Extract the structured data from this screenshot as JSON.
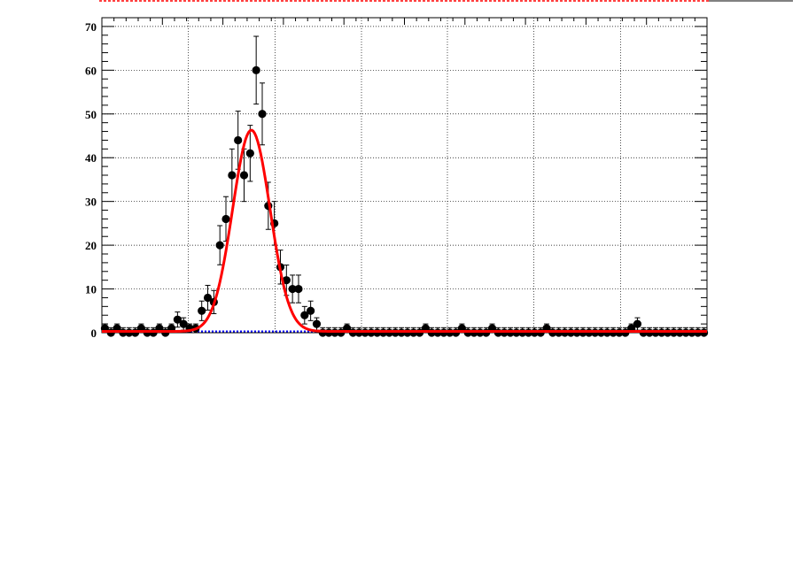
{
  "chart_data": {
    "type": "scatter",
    "title": "",
    "xlabel": "",
    "ylabel": "",
    "xlim": [
      0,
      100
    ],
    "ylim": [
      0,
      72
    ],
    "y_ticks": [
      0,
      10,
      20,
      30,
      40,
      50,
      60,
      70
    ],
    "grid": true,
    "x_grid": [
      14.3,
      28.6,
      42.9,
      57.1,
      71.4,
      85.7
    ],
    "series": [
      {
        "kind": "data-points-with-error-bars",
        "color": "#000000",
        "x": [
          0.5,
          1.5,
          2.5,
          3.5,
          4.5,
          5.5,
          6.5,
          7.5,
          8.5,
          9.5,
          10.5,
          11.5,
          12.5,
          13.5,
          14.5,
          15.5,
          16.5,
          17.5,
          18.5,
          19.5,
          20.5,
          21.5,
          22.5,
          23.5,
          24.5,
          25.5,
          26.5,
          27.5,
          28.5,
          29.5,
          30.5,
          31.5,
          32.5,
          33.5,
          34.5,
          35.5,
          36.5,
          37.5,
          38.5,
          39.5,
          40.5,
          41.5,
          42.5,
          43.5,
          44.5,
          45.5,
          46.5,
          47.5,
          48.5,
          49.5,
          50.5,
          51.5,
          52.5,
          53.5,
          54.5,
          55.5,
          56.5,
          57.5,
          58.5,
          59.5,
          60.5,
          61.5,
          62.5,
          63.5,
          64.5,
          65.5,
          66.5,
          67.5,
          68.5,
          69.5,
          70.5,
          71.5,
          72.5,
          73.5,
          74.5,
          75.5,
          76.5,
          77.5,
          78.5,
          79.5,
          80.5,
          81.5,
          82.5,
          83.5,
          84.5,
          85.5,
          86.5,
          87.5,
          88.5,
          89.5,
          90.5,
          91.5,
          92.5,
          93.5,
          94.5,
          95.5,
          96.5,
          97.5,
          98.5,
          99.5
        ],
        "y": [
          1,
          0,
          1,
          0,
          0,
          0,
          1,
          0,
          0,
          1,
          0,
          1,
          3,
          2,
          1,
          1,
          5,
          8,
          7,
          20,
          26,
          36,
          44,
          36,
          41,
          60,
          50,
          29,
          25,
          15,
          12,
          10,
          10,
          4,
          5,
          2,
          0,
          0,
          0,
          0,
          1,
          0,
          0,
          0,
          0,
          0,
          0,
          0,
          0,
          0,
          0,
          0,
          0,
          1,
          0,
          0,
          0,
          0,
          0,
          1,
          0,
          0,
          0,
          0,
          1,
          0,
          0,
          0,
          0,
          0,
          0,
          0,
          0,
          1,
          0,
          0,
          0,
          0,
          0,
          0,
          0,
          0,
          0,
          0,
          0,
          0,
          0,
          1,
          2,
          0,
          0,
          0,
          0,
          0,
          0,
          0,
          0,
          0,
          0,
          0
        ]
      },
      {
        "kind": "fit-curve",
        "color": "#ff0000",
        "model": "gaussian",
        "amplitude": 46,
        "mean": 24.7,
        "sigma": 3.1
      },
      {
        "kind": "background-line",
        "color": "#0000ff",
        "style": "dotted",
        "value": 0.3
      }
    ]
  },
  "colors": {
    "points": "#000000",
    "fit": "#ff0000",
    "background": "#0000ff",
    "top_band": "#ff0000"
  }
}
